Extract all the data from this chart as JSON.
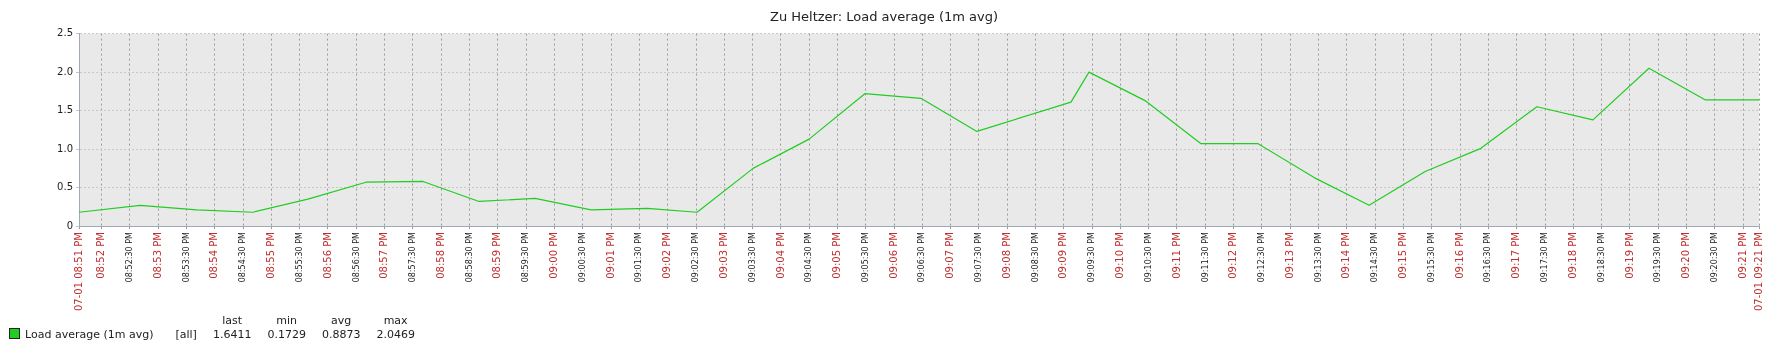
{
  "chart_data": {
    "type": "line",
    "title": "Zu Heltzer: Load average (1m avg)",
    "x": [
      20.86,
      20.878,
      20.8947,
      20.9112,
      20.9274,
      20.9445,
      20.9613,
      20.9778,
      20.9943,
      21.0108,
      21.0273,
      21.042,
      21.0585,
      21.075,
      21.0914,
      21.1079,
      21.1244,
      21.1521,
      21.1574,
      21.1739,
      21.1904,
      21.2072,
      21.2237,
      21.2399,
      21.2564,
      21.2728,
      21.2893,
      21.3058,
      21.3223,
      21.3388,
      21.3547
    ],
    "series": [
      {
        "name": "Load average (1m avg)",
        "color": "#22cc22",
        "values": [
          0.18,
          0.27,
          0.21,
          0.18,
          0.35,
          0.57,
          0.58,
          0.32,
          0.36,
          0.21,
          0.23,
          0.18,
          0.75,
          1.13,
          1.72,
          1.66,
          1.23,
          1.61,
          2.0,
          1.63,
          1.07,
          1.07,
          0.63,
          0.27,
          0.71,
          1.01,
          1.55,
          1.38,
          2.05,
          1.64,
          1.64
        ]
      }
    ],
    "xlim": [
      20.86,
      21.3547
    ],
    "xticks": [
      {
        "value": 20.86,
        "label": "07-01 08:51 PM"
      },
      {
        "value": 20.8667,
        "label": "08:52 PM"
      },
      {
        "value": 20.875,
        "label": "08:52:30 PM"
      },
      {
        "value": 20.8833,
        "label": "08:53 PM"
      },
      {
        "value": 20.8917,
        "label": "08:53:30 PM"
      },
      {
        "value": 20.9,
        "label": "08:54 PM"
      },
      {
        "value": 20.9083,
        "label": "08:54:30 PM"
      },
      {
        "value": 20.9167,
        "label": "08:55 PM"
      },
      {
        "value": 20.925,
        "label": "08:55:30 PM"
      },
      {
        "value": 20.9333,
        "label": "08:56 PM"
      },
      {
        "value": 20.9417,
        "label": "08:56:30 PM"
      },
      {
        "value": 20.95,
        "label": "08:57 PM"
      },
      {
        "value": 20.9583,
        "label": "08:57:30 PM"
      },
      {
        "value": 20.9667,
        "label": "08:58 PM"
      },
      {
        "value": 20.975,
        "label": "08:58:30 PM"
      },
      {
        "value": 20.9833,
        "label": "08:59 PM"
      },
      {
        "value": 20.9917,
        "label": "08:59:30 PM"
      },
      {
        "value": 21,
        "label": "09:00 PM"
      },
      {
        "value": 21.0083,
        "label": "09:00:30 PM"
      },
      {
        "value": 21.0167,
        "label": "09:01 PM"
      },
      {
        "value": 21.025,
        "label": "09:01:30 PM"
      },
      {
        "value": 21.0333,
        "label": "09:02 PM"
      },
      {
        "value": 21.0417,
        "label": "09:02:30 PM"
      },
      {
        "value": 21.05,
        "label": "09:03 PM"
      },
      {
        "value": 21.0583,
        "label": "09:03:30 PM"
      },
      {
        "value": 21.0667,
        "label": "09:04 PM"
      },
      {
        "value": 21.075,
        "label": "09:04:30 PM"
      },
      {
        "value": 21.0833,
        "label": "09:05 PM"
      },
      {
        "value": 21.0917,
        "label": "09:05:30 PM"
      },
      {
        "value": 21.1,
        "label": "09:06 PM"
      },
      {
        "value": 21.1083,
        "label": "09:06:30 PM"
      },
      {
        "value": 21.1167,
        "label": "09:07 PM"
      },
      {
        "value": 21.125,
        "label": "09:07:30 PM"
      },
      {
        "value": 21.1333,
        "label": "09:08 PM"
      },
      {
        "value": 21.1417,
        "label": "09:08:30 PM"
      },
      {
        "value": 21.15,
        "label": "09:09 PM"
      },
      {
        "value": 21.1583,
        "label": "09:09:30 PM"
      },
      {
        "value": 21.1667,
        "label": "09:10 PM"
      },
      {
        "value": 21.175,
        "label": "09:10:30 PM"
      },
      {
        "value": 21.1833,
        "label": "09:11 PM"
      },
      {
        "value": 21.1917,
        "label": "09:11:30 PM"
      },
      {
        "value": 21.2,
        "label": "09:12 PM"
      },
      {
        "value": 21.2083,
        "label": "09:12:30 PM"
      },
      {
        "value": 21.2167,
        "label": "09:13 PM"
      },
      {
        "value": 21.225,
        "label": "09:13:30 PM"
      },
      {
        "value": 21.2333,
        "label": "09:14 PM"
      },
      {
        "value": 21.2417,
        "label": "09:14:30 PM"
      },
      {
        "value": 21.25,
        "label": "09:15 PM"
      },
      {
        "value": 21.2583,
        "label": "09:15:30 PM"
      },
      {
        "value": 21.2667,
        "label": "09:16 PM"
      },
      {
        "value": 21.275,
        "label": "09:16:30 PM"
      },
      {
        "value": 21.2833,
        "label": "09:17 PM"
      },
      {
        "value": 21.2917,
        "label": "09:17:30 PM"
      },
      {
        "value": 21.3,
        "label": "09:18 PM"
      },
      {
        "value": 21.3083,
        "label": "09:18:30 PM"
      },
      {
        "value": 21.3167,
        "label": "09:19 PM"
      },
      {
        "value": 21.325,
        "label": "09:19:30 PM"
      },
      {
        "value": 21.3333,
        "label": "09:20 PM"
      },
      {
        "value": 21.3417,
        "label": "09:20:30 PM"
      },
      {
        "value": 21.35,
        "label": "09:21 PM"
      },
      {
        "value": 21.3547,
        "label": "07-01 09:21 PM"
      }
    ],
    "ylim": [
      0,
      2.5
    ],
    "yticks": [
      0,
      0.5,
      {
        "value": 1,
        "label": "1.0"
      },
      {
        "value": 1.5,
        "label": "1.5"
      },
      {
        "value": 2,
        "label": "2.0"
      },
      2.5
    ],
    "grid": true,
    "legend": "bottom left",
    "marker": "none",
    "line_style": "solid",
    "annotations": [
      "last",
      "min",
      "avg",
      "max",
      "[all]",
      "1.6411",
      "0.1729",
      "0.8873",
      "2.0469"
    ]
  }
}
